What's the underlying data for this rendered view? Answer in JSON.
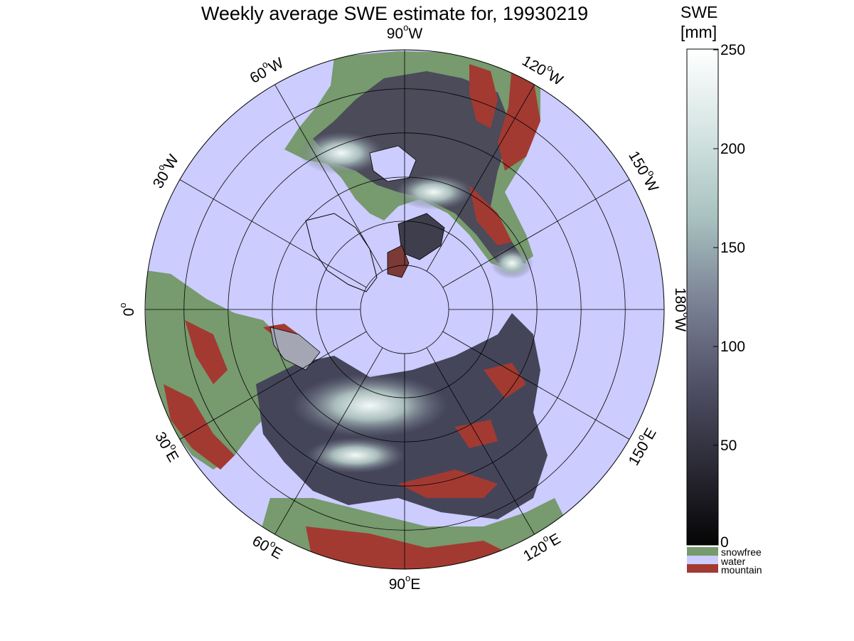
{
  "title": "Weekly average SWE estimate for, 19930219",
  "colorbar": {
    "label_line1": "SWE",
    "label_line2": "[mm]",
    "ticks": [
      "0",
      "50",
      "100",
      "150",
      "200",
      "250"
    ],
    "range": [
      0,
      250
    ],
    "gradient_colors": [
      "#050505",
      "#2b2a36",
      "#525268",
      "#7d8597",
      "#a8c2c0",
      "#d4e4e2",
      "#ffffff"
    ]
  },
  "legend": [
    {
      "label": "snowfree",
      "color": "#779a6e"
    },
    {
      "label": "water",
      "color": "#ccccff"
    },
    {
      "label": "mountain",
      "color": "#a23a32"
    }
  ],
  "longitude_labels": [
    {
      "text": "90",
      "suffix": "W",
      "lon_deg": 90
    },
    {
      "text": "120",
      "suffix": "W",
      "lon_deg": 120
    },
    {
      "text": "150",
      "suffix": "W",
      "lon_deg": 150
    },
    {
      "text": "180",
      "suffix": "W",
      "lon_deg": 180
    },
    {
      "text": "150",
      "suffix": "E",
      "lon_deg": 210
    },
    {
      "text": "120",
      "suffix": "E",
      "lon_deg": 240
    },
    {
      "text": "90",
      "suffix": "E",
      "lon_deg": 270
    },
    {
      "text": "60",
      "suffix": "E",
      "lon_deg": 300
    },
    {
      "text": "30",
      "suffix": "E",
      "lon_deg": 330
    },
    {
      "text": "0",
      "suffix": "",
      "lon_deg": 0
    },
    {
      "text": "30",
      "suffix": "W",
      "lon_deg": 30
    },
    {
      "text": "60",
      "suffix": "W",
      "lon_deg": 60
    }
  ]
}
